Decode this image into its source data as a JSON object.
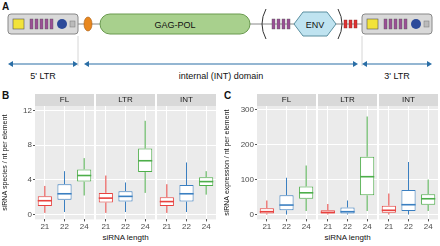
{
  "diagram": {
    "panel": "A",
    "elements": {
      "gag_pol": "GAG-POL",
      "env": "ENV"
    },
    "regions": [
      "5' LTR",
      "internal (INT) domain",
      "3' LTR"
    ]
  },
  "chart_data": [
    {
      "type": "boxplot",
      "panel": "B",
      "y_label": "siRNA species / nt per element",
      "x_label": "siRNA length",
      "categories": [
        "21",
        "22",
        "24"
      ],
      "colors": [
        "#e8423f",
        "#3a7fc1",
        "#4dae4a"
      ],
      "ylim": [
        -0.55,
        12.5
      ],
      "yticks": [
        0,
        4,
        8,
        12
      ],
      "grid": true,
      "facets": [
        {
          "title": "FL",
          "whisker_low": [
            0.2,
            0.3,
            2.2
          ],
          "q1": [
            1.0,
            1.7,
            3.8
          ],
          "median": [
            1.6,
            2.4,
            4.5
          ],
          "q3": [
            2.1,
            3.5,
            5.2
          ],
          "whisker_high": [
            3.3,
            5.0,
            6.5
          ]
        },
        {
          "title": "LTR",
          "whisker_low": [
            0.2,
            0.3,
            2.5
          ],
          "q1": [
            1.4,
            1.5,
            4.9
          ],
          "median": [
            1.9,
            2.1,
            6.2
          ],
          "q3": [
            2.5,
            2.7,
            7.6
          ],
          "whisker_high": [
            4.5,
            3.7,
            10.8
          ]
        },
        {
          "title": "INT",
          "whisker_low": [
            0.2,
            0.3,
            2.3
          ],
          "q1": [
            1.0,
            1.5,
            3.3
          ],
          "median": [
            1.5,
            2.4,
            3.8
          ],
          "q3": [
            2.0,
            3.4,
            4.3
          ],
          "whisker_high": [
            3.5,
            6.0,
            5.0
          ]
        }
      ]
    },
    {
      "type": "boxplot",
      "panel": "C",
      "y_label": "siRNA expression / nt per element",
      "x_label": "siRNA length",
      "categories": [
        "21",
        "22",
        "24"
      ],
      "colors": [
        "#e8423f",
        "#3a7fc1",
        "#4dae4a"
      ],
      "ylim": [
        -14,
        310
      ],
      "yticks": [
        0,
        100,
        200,
        300
      ],
      "grid": true,
      "facets": [
        {
          "title": "FL",
          "whisker_low": [
            0,
            0,
            10
          ],
          "q1": [
            3,
            12,
            45
          ],
          "median": [
            8,
            27,
            62
          ],
          "q3": [
            18,
            55,
            80
          ],
          "whisker_high": [
            40,
            105,
            140
          ]
        },
        {
          "title": "LTR",
          "whisker_low": [
            0,
            0,
            10
          ],
          "q1": [
            3,
            3,
            55
          ],
          "median": [
            6,
            8,
            108
          ],
          "q3": [
            12,
            20,
            165
          ],
          "whisker_high": [
            30,
            40,
            280
          ]
        },
        {
          "title": "INT",
          "whisker_low": [
            0,
            0,
            10
          ],
          "q1": [
            5,
            10,
            28
          ],
          "median": [
            12,
            28,
            45
          ],
          "q3": [
            25,
            70,
            58
          ],
          "whisker_high": [
            60,
            150,
            100
          ]
        }
      ]
    }
  ]
}
